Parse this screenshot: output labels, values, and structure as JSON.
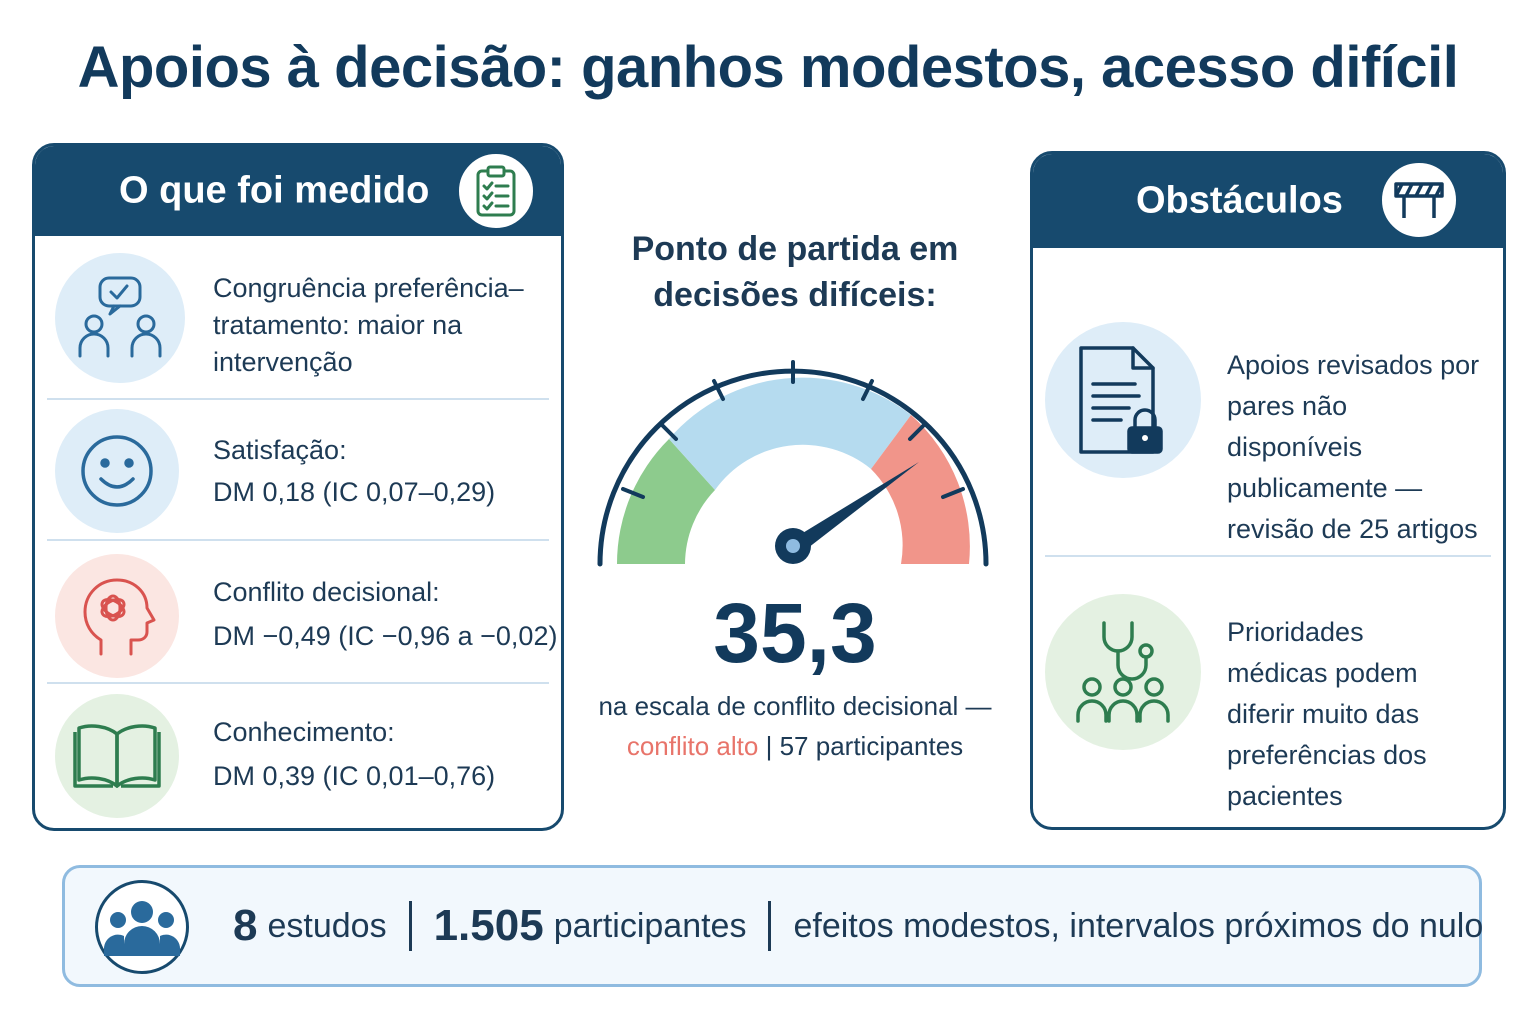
{
  "title": "Apoios à decisão: ganhos modestos, acesso difícil",
  "measured": {
    "heading": "O que foi medido",
    "icon": "clipboard-checklist-icon",
    "items": [
      {
        "icon": "people-chat-check-icon",
        "text": "Congruência preferência–tratamento: maior na intervenção"
      },
      {
        "icon": "smiley-face-icon",
        "label": "Satisfação:",
        "value": "DM 0,18 (IC 0,07–0,29)"
      },
      {
        "icon": "head-tangle-icon",
        "label": "Conflito decisional:",
        "value": "DM −0,49 (IC −0,96 a −0,02)"
      },
      {
        "icon": "open-book-icon",
        "label": "Conhecimento:",
        "value": "DM 0,39 (IC 0,01–0,76)"
      }
    ]
  },
  "gauge": {
    "label_line1": "Ponto de partida em",
    "label_line2": "decisões difíceis:",
    "value": "35,3",
    "caption_line1": "na escala de conflito decisional —",
    "caption_alert": "conflito alto",
    "caption_sep": "|",
    "caption_rest": "57 participantes",
    "colors": {
      "low": "#8dcb8d",
      "mid": "#b5dbef",
      "high": "#f1958a",
      "needle": "#123a5c"
    }
  },
  "obstacles": {
    "heading": "Obstáculos",
    "icon": "barrier-icon",
    "items": [
      {
        "icon": "locked-document-icon",
        "text": "Apoios revisados por pares não disponíveis publicamente — revisão de 25 artigos"
      },
      {
        "icon": "stethoscope-people-icon",
        "text": "Prioridades médicas podem diferir muito das preferências dos pacientes"
      }
    ]
  },
  "footer": {
    "icon": "group-people-icon",
    "studies_num": "8",
    "studies_label": "estudos",
    "participants_num": "1.505",
    "participants_label": "participantes",
    "summary": "efeitos modestos, intervalos próximos do nulo"
  },
  "colors": {
    "navy": "#174a6e",
    "text": "#1d3a55",
    "blue_tint": "#deedf8",
    "red_tint": "#fbe6e2",
    "green_tint": "#e4f1e2"
  }
}
